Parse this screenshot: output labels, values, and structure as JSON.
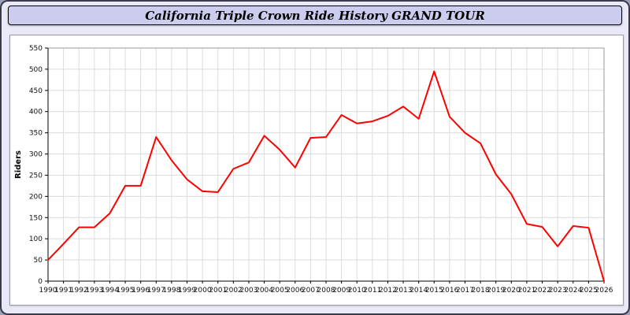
{
  "window": {
    "title": "California Triple Crown Ride History GRAND TOUR"
  },
  "colors": {
    "page_bg": "#e9e9f7",
    "titlebar_bg": "#ccccee",
    "plot_bg": "#ffffff",
    "grid": "#dcdcdc",
    "axis_line": "#000000",
    "axis_text": "#111111",
    "line": "#ff0000"
  },
  "chart_data": {
    "type": "line",
    "title": "California Triple Crown Ride History GRAND TOUR",
    "xlabel": "",
    "ylabel": "Riders",
    "ylim": [
      0,
      550
    ],
    "ytick_step": 50,
    "grid": true,
    "legend_position": "none",
    "x": [
      1990,
      1991,
      1992,
      1993,
      1994,
      1995,
      1996,
      1997,
      1998,
      1999,
      2000,
      2001,
      2002,
      2003,
      2004,
      2005,
      2006,
      2007,
      2008,
      2009,
      2010,
      2011,
      2012,
      2013,
      2014,
      2015,
      2016,
      2017,
      2018,
      2019,
      2020,
      2021,
      2022,
      2023,
      2024,
      2025,
      2026
    ],
    "series": [
      {
        "name": "Riders",
        "color": "#ff0000",
        "values": [
          50,
          88,
          127,
          127,
          160,
          225,
          225,
          340,
          285,
          240,
          212,
          210,
          265,
          280,
          343,
          310,
          268,
          338,
          340,
          392,
          372,
          377,
          390,
          412,
          383,
          495,
          388,
          350,
          325,
          252,
          205,
          135,
          128,
          82,
          130,
          126,
          0
        ]
      }
    ]
  }
}
